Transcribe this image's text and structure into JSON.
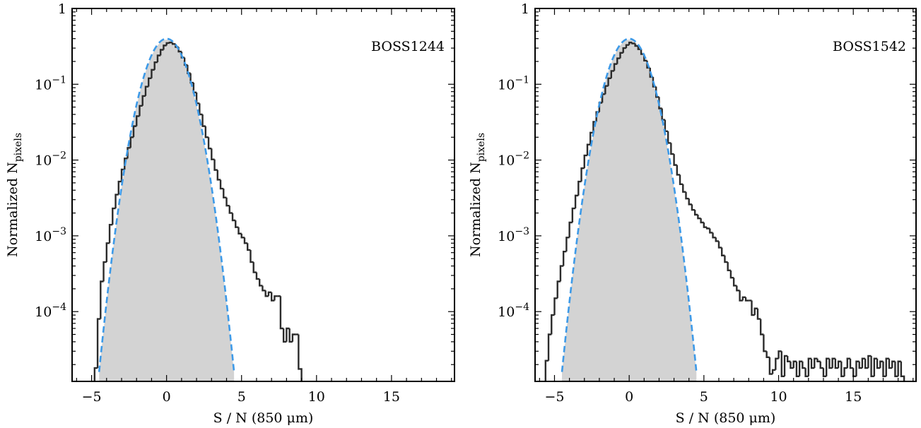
{
  "chart_data": [
    {
      "type": "histogram",
      "panel_label": "BOSS1244",
      "xlabel": "S / N (850 μm)",
      "ylabel": "Normalized N",
      "ylabel_sub": "pixels",
      "xlim": [
        -6.3,
        19.2
      ],
      "ylim": [
        1.2e-05,
        1
      ],
      "yscale": "log",
      "xticks": [
        -5,
        0,
        5,
        10,
        15
      ],
      "xtick_labels": [
        "−5",
        "0",
        "5",
        "10",
        "15"
      ],
      "yticks": [
        1,
        0.1,
        0.01,
        0.001,
        0.0001
      ],
      "ytick_labels": [
        {
          "base": "1",
          "exp": ""
        },
        {
          "base": "10",
          "exp": "−1"
        },
        {
          "base": "10",
          "exp": "−2"
        },
        {
          "base": "10",
          "exp": "−3"
        },
        {
          "base": "10",
          "exp": "−4"
        }
      ],
      "bin_width": 0.2,
      "x_start": -4.8,
      "x_end": 8.8,
      "background_fill_color": "#d3d3d3",
      "series": [
        {
          "kind": "step-histogram",
          "color": "#2b2b2b",
          "points": [
            [
              -4.8,
              1.8e-05
            ],
            [
              -4.6,
              8e-05
            ],
            [
              -4.4,
              0.00025
            ],
            [
              -4.2,
              0.00045
            ],
            [
              -4.0,
              0.0008
            ],
            [
              -3.8,
              0.0014
            ],
            [
              -3.6,
              0.0023
            ],
            [
              -3.4,
              0.0035
            ],
            [
              -3.2,
              0.0052
            ],
            [
              -3.0,
              0.0075
            ],
            [
              -2.8,
              0.0105
            ],
            [
              -2.6,
              0.0145
            ],
            [
              -2.4,
              0.02
            ],
            [
              -2.2,
              0.028
            ],
            [
              -2.0,
              0.038
            ],
            [
              -1.8,
              0.052
            ],
            [
              -1.6,
              0.07
            ],
            [
              -1.4,
              0.093
            ],
            [
              -1.2,
              0.12
            ],
            [
              -1.0,
              0.155
            ],
            [
              -0.8,
              0.195
            ],
            [
              -0.6,
              0.24
            ],
            [
              -0.4,
              0.285
            ],
            [
              -0.2,
              0.325
            ],
            [
              0.0,
              0.35
            ],
            [
              0.2,
              0.355
            ],
            [
              0.4,
              0.34
            ],
            [
              0.6,
              0.31
            ],
            [
              0.8,
              0.27
            ],
            [
              1.0,
              0.225
            ],
            [
              1.2,
              0.18
            ],
            [
              1.4,
              0.14
            ],
            [
              1.6,
              0.105
            ],
            [
              1.8,
              0.078
            ],
            [
              2.0,
              0.056
            ],
            [
              2.2,
              0.04
            ],
            [
              2.4,
              0.028
            ],
            [
              2.6,
              0.02
            ],
            [
              2.8,
              0.0142
            ],
            [
              3.0,
              0.0102
            ],
            [
              3.2,
              0.0074
            ],
            [
              3.4,
              0.0055
            ],
            [
              3.6,
              0.0042
            ],
            [
              3.8,
              0.0032
            ],
            [
              4.0,
              0.0025
            ],
            [
              4.2,
              0.002
            ],
            [
              4.4,
              0.0016
            ],
            [
              4.6,
              0.0013
            ],
            [
              4.8,
              0.00107
            ],
            [
              5.0,
              0.00095
            ],
            [
              5.2,
              0.0008
            ],
            [
              5.4,
              0.00065
            ],
            [
              5.6,
              0.00045
            ],
            [
              5.8,
              0.00033
            ],
            [
              6.0,
              0.00027
            ],
            [
              6.2,
              0.00022
            ],
            [
              6.4,
              0.00019
            ],
            [
              6.6,
              0.00016
            ],
            [
              6.8,
              0.00018
            ],
            [
              7.0,
              0.00014
            ],
            [
              7.2,
              0.00016
            ],
            [
              7.4,
              0.00016
            ],
            [
              7.6,
              6e-05
            ],
            [
              7.8,
              4e-05
            ],
            [
              8.0,
              6e-05
            ],
            [
              8.2,
              4e-05
            ],
            [
              8.4,
              5e-05
            ],
            [
              8.6,
              5e-05
            ],
            [
              8.8,
              1.75e-05
            ]
          ]
        },
        {
          "kind": "gaussian-dashed",
          "color": "#3d9ae8",
          "mean": 0,
          "sigma": 1,
          "x_range": [
            -4.5,
            4.5
          ]
        }
      ]
    },
    {
      "type": "histogram",
      "panel_label": "BOSS1542",
      "xlabel": "S / N (850 μm)",
      "ylabel": "Normalized N",
      "ylabel_sub": "pixels",
      "xlim": [
        -6.3,
        19.2
      ],
      "ylim": [
        1.2e-05,
        1
      ],
      "yscale": "log",
      "xticks": [
        -5,
        0,
        5,
        10,
        15
      ],
      "xtick_labels": [
        "−5",
        "0",
        "5",
        "10",
        "15"
      ],
      "yticks": [
        1,
        0.1,
        0.01,
        0.001,
        0.0001
      ],
      "ytick_labels": [
        {
          "base": "1",
          "exp": ""
        },
        {
          "base": "10",
          "exp": "−1"
        },
        {
          "base": "10",
          "exp": "−2"
        },
        {
          "base": "10",
          "exp": "−3"
        },
        {
          "base": "10",
          "exp": "−4"
        }
      ],
      "bin_width": 0.2,
      "x_start": -5.6,
      "x_end": 18.2,
      "background_fill_color": "#d3d3d3",
      "series": [
        {
          "kind": "step-histogram",
          "color": "#2b2b2b",
          "points": [
            [
              -5.6,
              2.25e-05
            ],
            [
              -5.4,
              5e-05
            ],
            [
              -5.2,
              9e-05
            ],
            [
              -5.0,
              0.00015
            ],
            [
              -4.8,
              0.00025
            ],
            [
              -4.6,
              0.0004
            ],
            [
              -4.4,
              0.00062
            ],
            [
              -4.2,
              0.00095
            ],
            [
              -4.0,
              0.0015
            ],
            [
              -3.8,
              0.0023
            ],
            [
              -3.6,
              0.0034
            ],
            [
              -3.4,
              0.0052
            ],
            [
              -3.2,
              0.0078
            ],
            [
              -3.0,
              0.0115
            ],
            [
              -2.8,
              0.016
            ],
            [
              -2.6,
              0.023
            ],
            [
              -2.4,
              0.032
            ],
            [
              -2.2,
              0.043
            ],
            [
              -2.0,
              0.057
            ],
            [
              -1.8,
              0.074
            ],
            [
              -1.6,
              0.095
            ],
            [
              -1.4,
              0.12
            ],
            [
              -1.2,
              0.15
            ],
            [
              -1.0,
              0.185
            ],
            [
              -0.8,
              0.22
            ],
            [
              -0.6,
              0.26
            ],
            [
              -0.4,
              0.3
            ],
            [
              -0.2,
              0.33
            ],
            [
              0.0,
              0.355
            ],
            [
              0.2,
              0.345
            ],
            [
              0.4,
              0.32
            ],
            [
              0.6,
              0.29
            ],
            [
              0.8,
              0.25
            ],
            [
              1.0,
              0.205
            ],
            [
              1.2,
              0.165
            ],
            [
              1.4,
              0.125
            ],
            [
              1.6,
              0.093
            ],
            [
              1.8,
              0.068
            ],
            [
              2.0,
              0.048
            ],
            [
              2.2,
              0.034
            ],
            [
              2.4,
              0.024
            ],
            [
              2.6,
              0.0168
            ],
            [
              2.8,
              0.012
            ],
            [
              3.0,
              0.0086
            ],
            [
              3.2,
              0.0064
            ],
            [
              3.4,
              0.0048
            ],
            [
              3.6,
              0.0038
            ],
            [
              3.8,
              0.0031
            ],
            [
              4.0,
              0.0026
            ],
            [
              4.2,
              0.0022
            ],
            [
              4.4,
              0.0019
            ],
            [
              4.6,
              0.0017
            ],
            [
              4.8,
              0.0015
            ],
            [
              5.0,
              0.0013
            ],
            [
              5.2,
              0.00125
            ],
            [
              5.4,
              0.0011
            ],
            [
              5.6,
              0.00095
            ],
            [
              5.8,
              0.00085
            ],
            [
              6.0,
              0.0007
            ],
            [
              6.2,
              0.00055
            ],
            [
              6.4,
              0.00045
            ],
            [
              6.6,
              0.00035
            ],
            [
              6.8,
              0.00028
            ],
            [
              7.0,
              0.00022
            ],
            [
              7.2,
              0.00019
            ],
            [
              7.4,
              0.00014
            ],
            [
              7.6,
              0.000155
            ],
            [
              7.8,
              0.00014
            ],
            [
              8.0,
              0.00014
            ],
            [
              8.2,
              9e-05
            ],
            [
              8.4,
              0.00011
            ],
            [
              8.6,
              8e-05
            ],
            [
              8.8,
              5e-05
            ],
            [
              9.0,
              3e-05
            ],
            [
              9.2,
              2.5e-05
            ],
            [
              9.4,
              1.5e-05
            ],
            [
              9.6,
              1.7e-05
            ],
            [
              9.8,
              2.4e-05
            ],
            [
              10.0,
              3e-05
            ],
            [
              10.2,
              1.4e-05
            ],
            [
              10.4,
              2.6e-05
            ],
            [
              10.6,
              2.2e-05
            ],
            [
              10.8,
              1.8e-05
            ],
            [
              11.0,
              2.2e-05
            ],
            [
              11.2,
              1.4e-05
            ],
            [
              11.4,
              2.2e-05
            ],
            [
              11.6,
              1.8e-05
            ],
            [
              11.8,
              1.4e-05
            ],
            [
              12.0,
              2.4e-05
            ],
            [
              12.2,
              1.8e-05
            ],
            [
              12.4,
              2.4e-05
            ],
            [
              12.6,
              2.2e-05
            ],
            [
              12.8,
              1.8e-05
            ],
            [
              13.0,
              1.4e-05
            ],
            [
              13.2,
              2.4e-05
            ],
            [
              13.4,
              1.8e-05
            ],
            [
              13.6,
              2.4e-05
            ],
            [
              13.8,
              1.8e-05
            ],
            [
              14.0,
              2.2e-05
            ],
            [
              14.2,
              1.4e-05
            ],
            [
              14.4,
              1.8e-05
            ],
            [
              14.6,
              2.4e-05
            ],
            [
              14.8,
              1.8e-05
            ],
            [
              15.0,
              1.4e-05
            ],
            [
              15.2,
              2.2e-05
            ],
            [
              15.4,
              1.8e-05
            ],
            [
              15.6,
              2.4e-05
            ],
            [
              15.8,
              1.8e-05
            ],
            [
              16.0,
              2.6e-05
            ],
            [
              16.2,
              1.4e-05
            ],
            [
              16.4,
              2.4e-05
            ],
            [
              16.6,
              1.8e-05
            ],
            [
              16.8,
              2.2e-05
            ],
            [
              17.0,
              1.4e-05
            ],
            [
              17.2,
              2.4e-05
            ],
            [
              17.4,
              1.8e-05
            ],
            [
              17.6,
              2.2e-05
            ],
            [
              17.8,
              1.4e-05
            ],
            [
              18.0,
              2.2e-05
            ],
            [
              18.2,
              1.4e-05
            ]
          ]
        },
        {
          "kind": "gaussian-dashed",
          "color": "#3d9ae8",
          "mean": 0,
          "sigma": 1,
          "x_range": [
            -4.5,
            4.5
          ]
        }
      ]
    }
  ]
}
